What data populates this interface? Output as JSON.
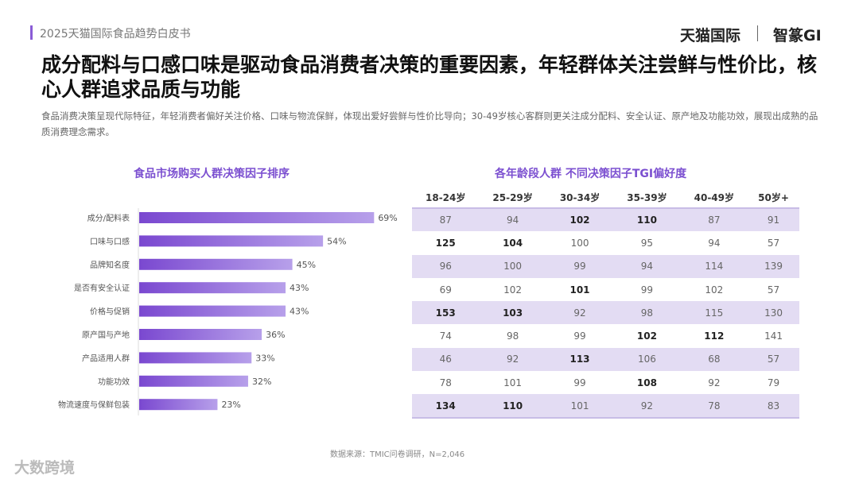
{
  "header": {
    "report": "2025天猫国际食品趋势白皮书",
    "logo_left": "天猫国际",
    "logo_right": "智篆GI"
  },
  "title": "成分配料与口感口味是驱动食品消费者决策的重要因素，年轻群体关注尝鲜与性价比，核心人群追求品质与功能",
  "subtitle": "食品消费决策呈现代际特征，年轻消费者偏好关注价格、口味与物流保鲜，体现出爱好尝鲜与性价比导向；30-49岁核心客群则更关注成分配料、安全认证、原产地及功能功效，展现出成熟的品质消费理念需求。",
  "chart_data": [
    {
      "type": "bar",
      "orientation": "horizontal",
      "title": "食品市场购买人群决策因子排序",
      "categories": [
        "成分/配料表",
        "口味与口感",
        "品牌知名度",
        "是否有安全认证",
        "价格与促销",
        "原产国与产地",
        "产品适用人群",
        "功能功效",
        "物流速度与保鲜包装"
      ],
      "values": [
        69,
        54,
        45,
        43,
        43,
        36,
        33,
        32,
        23
      ],
      "labels": [
        "69%",
        "54%",
        "45%",
        "43%",
        "43%",
        "36%",
        "33%",
        "32%",
        "23%"
      ],
      "unit": "%",
      "color": "#7b4fd0"
    },
    {
      "type": "table",
      "title": "各年龄段人群 不同决策因子TGI偏好度",
      "columns": [
        "18-24岁",
        "25-29岁",
        "30-34岁",
        "35-39岁",
        "40-49岁",
        "50岁+"
      ],
      "rows": [
        [
          87,
          94,
          102,
          110,
          87,
          91
        ],
        [
          125,
          104,
          100,
          95,
          94,
          57
        ],
        [
          96,
          100,
          99,
          94,
          114,
          139
        ],
        [
          69,
          102,
          101,
          99,
          102,
          57
        ],
        [
          153,
          103,
          92,
          98,
          115,
          130
        ],
        [
          74,
          98,
          99,
          102,
          112,
          141
        ],
        [
          46,
          92,
          113,
          106,
          68,
          57
        ],
        [
          78,
          101,
          99,
          108,
          92,
          79
        ],
        [
          134,
          110,
          101,
          92,
          78,
          83
        ]
      ],
      "bold": [
        [
          0,
          2
        ],
        [
          0,
          3
        ],
        [
          1,
          0
        ],
        [
          1,
          1
        ],
        [
          3,
          2
        ],
        [
          4,
          0
        ],
        [
          4,
          1
        ],
        [
          5,
          3
        ],
        [
          5,
          4
        ],
        [
          6,
          2
        ],
        [
          7,
          3
        ],
        [
          8,
          0
        ],
        [
          8,
          1
        ]
      ]
    }
  ],
  "source": "数据来源：TMIC问卷调研，N=2,046",
  "watermark": "大数跨境"
}
